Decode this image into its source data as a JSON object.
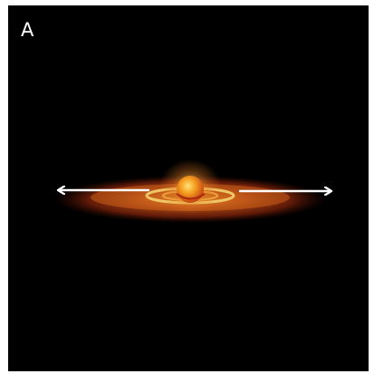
{
  "panel": {
    "label": "A"
  },
  "colors": {
    "background": "#000000",
    "disk_outer": "#b83a10",
    "disk_inner": "#f29a2a",
    "ring": "#f0d070",
    "star": "#f7a020",
    "arrows": "#ffffff"
  },
  "arrows": [
    {
      "direction": "left"
    },
    {
      "direction": "right"
    }
  ]
}
